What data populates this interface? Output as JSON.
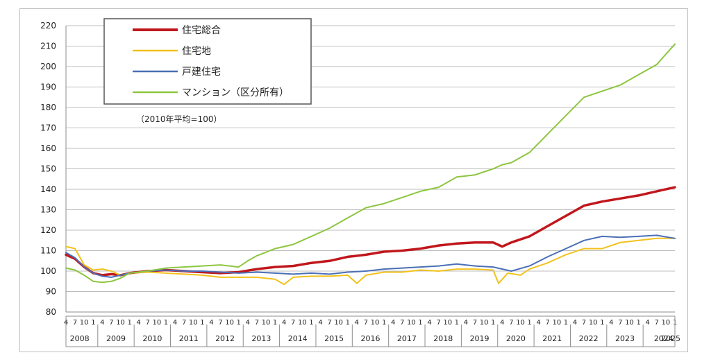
{
  "chart_data": {
    "type": "line",
    "title": "",
    "note": "（2010年平均=100）",
    "ylim": [
      80,
      220
    ],
    "yticks": [
      80,
      90,
      100,
      110,
      120,
      130,
      140,
      150,
      160,
      170,
      180,
      190,
      200,
      210,
      220
    ],
    "grid": true,
    "legend_position": "top-left",
    "x_month_ticks": [
      "4",
      "7",
      "10",
      "1"
    ],
    "years": [
      "2008",
      "2009",
      "2010",
      "2011",
      "2012",
      "2013",
      "2014",
      "2015",
      "2016",
      "2017",
      "2018",
      "2019",
      "2020",
      "2021",
      "2022",
      "2023",
      "2024",
      "2025"
    ],
    "x_start": 2008.25,
    "x_end": 2025.0,
    "series": [
      {
        "name": "住宅総合",
        "color": "#c0171c",
        "points": [
          [
            2008.25,
            108
          ],
          [
            2008.5,
            106
          ],
          [
            2008.75,
            102
          ],
          [
            2009.0,
            99
          ],
          [
            2009.25,
            98
          ],
          [
            2009.5,
            98.5
          ],
          [
            2009.75,
            98
          ],
          [
            2010.0,
            99
          ],
          [
            2010.5,
            100
          ],
          [
            2011.0,
            100.5
          ],
          [
            2011.5,
            100
          ],
          [
            2012.0,
            99.5
          ],
          [
            2012.5,
            99
          ],
          [
            2013.0,
            99.5
          ],
          [
            2013.5,
            101
          ],
          [
            2014.0,
            102
          ],
          [
            2014.5,
            102.5
          ],
          [
            2015.0,
            104
          ],
          [
            2015.5,
            105
          ],
          [
            2016.0,
            107
          ],
          [
            2016.5,
            108
          ],
          [
            2017.0,
            109.5
          ],
          [
            2017.5,
            110
          ],
          [
            2018.0,
            111
          ],
          [
            2018.5,
            112.5
          ],
          [
            2019.0,
            113.5
          ],
          [
            2019.5,
            114
          ],
          [
            2020.0,
            114
          ],
          [
            2020.25,
            112
          ],
          [
            2020.5,
            114
          ],
          [
            2021.0,
            117
          ],
          [
            2021.5,
            122
          ],
          [
            2022.0,
            127
          ],
          [
            2022.5,
            132
          ],
          [
            2023.0,
            134
          ],
          [
            2023.5,
            135.5
          ],
          [
            2024.0,
            137
          ],
          [
            2024.5,
            139
          ],
          [
            2025.0,
            141
          ]
        ]
      },
      {
        "name": "住宅地",
        "color": "#f2c21b",
        "points": [
          [
            2008.25,
            112
          ],
          [
            2008.5,
            111
          ],
          [
            2008.75,
            103
          ],
          [
            2009.0,
            100.5
          ],
          [
            2009.25,
            101
          ],
          [
            2009.5,
            100
          ],
          [
            2009.75,
            98
          ],
          [
            2010.0,
            99
          ],
          [
            2010.5,
            99.5
          ],
          [
            2011.0,
            99
          ],
          [
            2011.5,
            98.5
          ],
          [
            2012.0,
            98
          ],
          [
            2012.5,
            97
          ],
          [
            2013.0,
            97
          ],
          [
            2013.5,
            97
          ],
          [
            2014.0,
            96
          ],
          [
            2014.25,
            93.5
          ],
          [
            2014.5,
            97
          ],
          [
            2015.0,
            97.5
          ],
          [
            2015.5,
            97.5
          ],
          [
            2016.0,
            98
          ],
          [
            2016.25,
            94
          ],
          [
            2016.5,
            98
          ],
          [
            2017.0,
            99.5
          ],
          [
            2017.5,
            99.5
          ],
          [
            2018.0,
            100.5
          ],
          [
            2018.5,
            100
          ],
          [
            2019.0,
            101
          ],
          [
            2019.5,
            101
          ],
          [
            2020.0,
            100.5
          ],
          [
            2020.15,
            94
          ],
          [
            2020.4,
            99
          ],
          [
            2020.75,
            98
          ],
          [
            2021.0,
            101
          ],
          [
            2021.5,
            104
          ],
          [
            2022.0,
            108
          ],
          [
            2022.5,
            111
          ],
          [
            2023.0,
            111
          ],
          [
            2023.5,
            114
          ],
          [
            2024.0,
            115
          ],
          [
            2024.5,
            116
          ],
          [
            2025.0,
            116
          ]
        ]
      },
      {
        "name": "戸建住宅",
        "color": "#4a6fb5",
        "points": [
          [
            2008.25,
            109
          ],
          [
            2008.5,
            106.5
          ],
          [
            2008.75,
            102
          ],
          [
            2009.0,
            99
          ],
          [
            2009.25,
            97.5
          ],
          [
            2009.5,
            97
          ],
          [
            2009.75,
            98
          ],
          [
            2010.0,
            99
          ],
          [
            2010.5,
            100
          ],
          [
            2011.0,
            100.5
          ],
          [
            2011.5,
            100
          ],
          [
            2012.0,
            100
          ],
          [
            2012.5,
            99.5
          ],
          [
            2013.0,
            99
          ],
          [
            2013.5,
            99.5
          ],
          [
            2014.0,
            99
          ],
          [
            2014.5,
            98.5
          ],
          [
            2015.0,
            99
          ],
          [
            2015.5,
            98.5
          ],
          [
            2016.0,
            99.5
          ],
          [
            2016.5,
            100
          ],
          [
            2017.0,
            101
          ],
          [
            2017.5,
            101.5
          ],
          [
            2018.0,
            102
          ],
          [
            2018.5,
            102.5
          ],
          [
            2019.0,
            103.5
          ],
          [
            2019.5,
            102.5
          ],
          [
            2020.0,
            102
          ],
          [
            2020.5,
            100
          ],
          [
            2021.0,
            102.5
          ],
          [
            2021.5,
            107
          ],
          [
            2022.0,
            111
          ],
          [
            2022.5,
            115
          ],
          [
            2023.0,
            117
          ],
          [
            2023.5,
            116.5
          ],
          [
            2024.0,
            117
          ],
          [
            2024.5,
            117.5
          ],
          [
            2025.0,
            116
          ]
        ]
      },
      {
        "name": "マンション（区分所有）",
        "color": "#8dc63f",
        "points": [
          [
            2008.25,
            101.5
          ],
          [
            2008.5,
            100.5
          ],
          [
            2008.75,
            98
          ],
          [
            2009.0,
            95
          ],
          [
            2009.25,
            94.5
          ],
          [
            2009.5,
            95
          ],
          [
            2009.75,
            96.5
          ],
          [
            2010.0,
            99
          ],
          [
            2010.5,
            100
          ],
          [
            2011.0,
            101.5
          ],
          [
            2011.5,
            102
          ],
          [
            2012.0,
            102.5
          ],
          [
            2012.5,
            103
          ],
          [
            2013.0,
            102
          ],
          [
            2013.25,
            105
          ],
          [
            2013.5,
            107.5
          ],
          [
            2014.0,
            111
          ],
          [
            2014.5,
            113
          ],
          [
            2015.0,
            117
          ],
          [
            2015.5,
            121
          ],
          [
            2016.0,
            126
          ],
          [
            2016.5,
            131
          ],
          [
            2017.0,
            133
          ],
          [
            2017.5,
            136
          ],
          [
            2018.0,
            139
          ],
          [
            2018.5,
            141
          ],
          [
            2019.0,
            146
          ],
          [
            2019.5,
            147
          ],
          [
            2020.0,
            150
          ],
          [
            2020.25,
            152
          ],
          [
            2020.5,
            153
          ],
          [
            2021.0,
            158
          ],
          [
            2021.5,
            167
          ],
          [
            2022.0,
            176
          ],
          [
            2022.5,
            185
          ],
          [
            2023.0,
            188
          ],
          [
            2023.5,
            191
          ],
          [
            2024.0,
            196
          ],
          [
            2024.5,
            201
          ],
          [
            2024.75,
            206
          ],
          [
            2025.0,
            211
          ]
        ]
      }
    ]
  }
}
